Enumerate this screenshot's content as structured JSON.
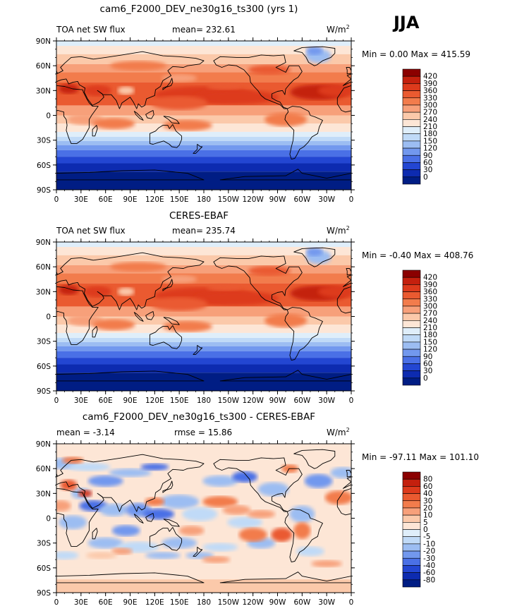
{
  "season": "JJA",
  "chart_data": [
    {
      "type": "heatmap",
      "title": "cam6_F2000_DEV_ne30g16_ts300 (yrs 1)",
      "variable": "TOA net SW flux",
      "stat_left": "mean= 232.61",
      "stat_center": "",
      "units_base": "W/m",
      "units_exp": "2",
      "minmax": "Min =    0.00 Max = 415.59",
      "min": 0.0,
      "max": 415.59,
      "levels": [
        "420",
        "390",
        "360",
        "330",
        "300",
        "270",
        "240",
        "210",
        "180",
        "150",
        "120",
        "90",
        "60",
        "30",
        "0"
      ],
      "colors": [
        "#8b0000",
        "#c4200e",
        "#dd3a1c",
        "#ea5a30",
        "#f27c4c",
        "#f7a07a",
        "#fbc9aa",
        "#fde6d6",
        "#dfeefa",
        "#c0daf7",
        "#9cbdf2",
        "#7298ee",
        "#4a70e6",
        "#2346d2",
        "#0d2bb0",
        "#001d84"
      ],
      "lat_ticks": [
        "90N",
        "60N",
        "30N",
        "0",
        "30S",
        "60S",
        "90S"
      ],
      "lon_ticks": [
        "0",
        "30E",
        "60E",
        "90E",
        "120E",
        "150E",
        "180",
        "150W",
        "120W",
        "90W",
        "60W",
        "30W",
        "0"
      ]
    },
    {
      "type": "heatmap",
      "title": "CERES-EBAF",
      "variable": "TOA net SW flux",
      "stat_left": "mean= 235.74",
      "stat_center": "",
      "units_base": "W/m",
      "units_exp": "2",
      "minmax": "Min =   -0.40 Max = 408.76",
      "min": -0.4,
      "max": 408.76,
      "levels": [
        "420",
        "390",
        "360",
        "330",
        "300",
        "270",
        "240",
        "210",
        "180",
        "150",
        "120",
        "90",
        "60",
        "30",
        "0"
      ],
      "colors": [
        "#8b0000",
        "#c4200e",
        "#dd3a1c",
        "#ea5a30",
        "#f27c4c",
        "#f7a07a",
        "#fbc9aa",
        "#fde6d6",
        "#dfeefa",
        "#c0daf7",
        "#9cbdf2",
        "#7298ee",
        "#4a70e6",
        "#2346d2",
        "#0d2bb0",
        "#001d84"
      ],
      "lat_ticks": [
        "90N",
        "60N",
        "30N",
        "0",
        "30S",
        "60S",
        "90S"
      ],
      "lon_ticks": [
        "0",
        "30E",
        "60E",
        "90E",
        "120E",
        "150E",
        "180",
        "150W",
        "120W",
        "90W",
        "60W",
        "30W",
        "0"
      ]
    },
    {
      "type": "heatmap",
      "title": "cam6_F2000_DEV_ne30g16_ts300 - CERES-EBAF",
      "variable": "",
      "stat_left": "mean =   -3.14",
      "stat_center": "rmse =   15.86",
      "units_base": "W/m",
      "units_exp": "2",
      "minmax": "Min = -97.11 Max = 101.10",
      "min": -97.11,
      "max": 101.1,
      "levels": [
        "80",
        "60",
        "40",
        "30",
        "20",
        "10",
        "5",
        "0",
        "-5",
        "-10",
        "-20",
        "-30",
        "-40",
        "-60",
        "-80"
      ],
      "colors": [
        "#8b0000",
        "#c4200e",
        "#dd3a1c",
        "#ea5a30",
        "#f27c4c",
        "#f7a07a",
        "#fbc9aa",
        "#fde6d6",
        "#dfeefa",
        "#c0daf7",
        "#9cbdf2",
        "#7298ee",
        "#4a70e6",
        "#2346d2",
        "#0d2bb0",
        "#001d84"
      ],
      "lat_ticks": [
        "90N",
        "60N",
        "30N",
        "0",
        "30S",
        "60S",
        "90S"
      ],
      "lon_ticks": [
        "0",
        "30E",
        "60E",
        "90E",
        "120E",
        "150E",
        "180",
        "150W",
        "120W",
        "90W",
        "60W",
        "30W",
        "0"
      ]
    }
  ]
}
